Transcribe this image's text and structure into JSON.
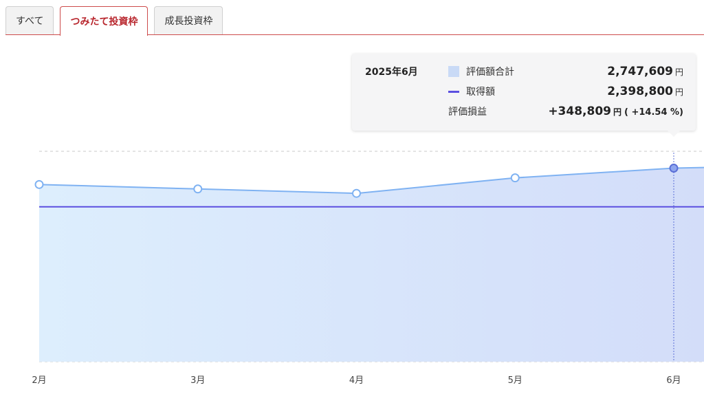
{
  "tabs": [
    {
      "label": "すべて",
      "active": false
    },
    {
      "label": "つみたて投資枠",
      "active": true
    },
    {
      "label": "成長投資枠",
      "active": false
    }
  ],
  "tooltip": {
    "date": "2025年6月",
    "total_label": "評価額合計",
    "total_value": "2,747,609",
    "cost_label": "取得額",
    "cost_value": "2,398,800",
    "pl_label": "評価損益",
    "pl_value": "+348,809",
    "pl_rate": "( +14.54 %)",
    "unit": "円"
  },
  "colors": {
    "accent": "#b8262d",
    "area_fill": "#d6e4fb",
    "value_line": "#7fb2f2",
    "cost_line": "#5b4fe0",
    "gain": "#cf2e3a"
  },
  "chart_data": {
    "type": "area",
    "categories": [
      "2月",
      "3月",
      "4月",
      "5月",
      "6月"
    ],
    "series": [
      {
        "name": "評価額合計",
        "values": [
          2600000,
          2560000,
          2520000,
          2660000,
          2747609
        ]
      },
      {
        "name": "取得額",
        "values": [
          2398800,
          2398800,
          2398800,
          2398800,
          2398800
        ]
      }
    ],
    "highlighted_category": "6月",
    "grid": true
  }
}
